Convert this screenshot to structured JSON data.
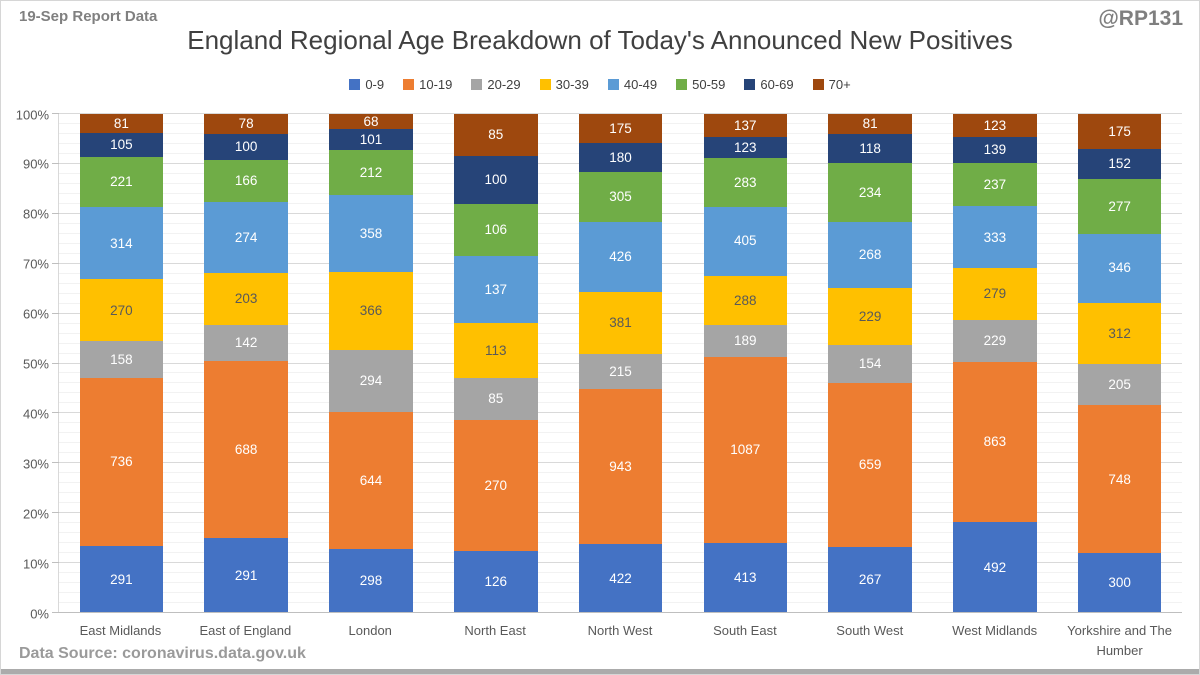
{
  "header": {
    "report_label": "19-Sep Report Data",
    "watermark": "@RP131"
  },
  "footer": {
    "source": "Data Source: coronavirus.data.gov.uk"
  },
  "chart_data": {
    "type": "bar",
    "variant": "stacked-100-percent",
    "title": "England Regional Age Breakdown of Today's Announced New Positives",
    "legend_position": "top",
    "grid": true,
    "categories": [
      "East Midlands",
      "East of England",
      "London",
      "North East",
      "North West",
      "South East",
      "South West",
      "West Midlands",
      "Yorkshire and The Humber"
    ],
    "series": [
      {
        "name": "0-9",
        "color": "#4472C4",
        "label_color": "#FFFFFF",
        "values": [
          291,
          291,
          298,
          126,
          422,
          413,
          267,
          492,
          300
        ]
      },
      {
        "name": "10-19",
        "color": "#ED7D31",
        "label_color": "#FFFFFF",
        "values": [
          736,
          688,
          644,
          270,
          943,
          1087,
          659,
          863,
          748
        ]
      },
      {
        "name": "20-29",
        "color": "#A5A5A5",
        "label_color": "#FFFFFF",
        "values": [
          158,
          142,
          294,
          85,
          215,
          189,
          154,
          229,
          205
        ]
      },
      {
        "name": "30-39",
        "color": "#FFC000",
        "label_color": "#595959",
        "values": [
          270,
          203,
          366,
          113,
          381,
          288,
          229,
          279,
          312
        ]
      },
      {
        "name": "40-49",
        "color": "#5B9BD5",
        "label_color": "#FFFFFF",
        "values": [
          314,
          274,
          358,
          137,
          426,
          405,
          268,
          333,
          346
        ]
      },
      {
        "name": "50-59",
        "color": "#70AD47",
        "label_color": "#FFFFFF",
        "values": [
          221,
          166,
          212,
          106,
          305,
          283,
          234,
          237,
          277
        ]
      },
      {
        "name": "60-69",
        "color": "#264478",
        "label_color": "#FFFFFF",
        "values": [
          105,
          100,
          101,
          100,
          180,
          123,
          118,
          139,
          152
        ]
      },
      {
        "name": "70+",
        "color": "#9E480E",
        "label_color": "#FFFFFF",
        "values": [
          81,
          78,
          68,
          85,
          175,
          137,
          81,
          123,
          175
        ]
      }
    ],
    "y_axis": {
      "min": 0,
      "max": 100,
      "major_step": 10,
      "minor_step": 2,
      "tick_labels": [
        "0%",
        "10%",
        "20%",
        "30%",
        "40%",
        "50%",
        "60%",
        "70%",
        "80%",
        "90%",
        "100%"
      ]
    }
  }
}
